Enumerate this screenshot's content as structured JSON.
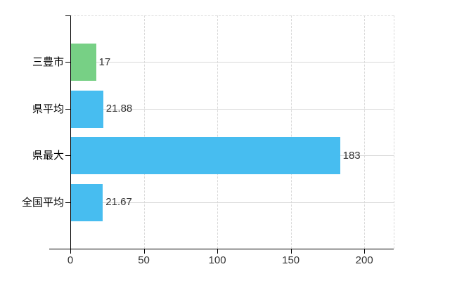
{
  "chart_data": {
    "type": "bar",
    "orientation": "horizontal",
    "title": "",
    "xlabel": "",
    "ylabel": "",
    "categories": [
      "三豊市",
      "県平均",
      "県最大",
      "全国平均"
    ],
    "values": [
      17,
      21.88,
      183,
      21.67
    ],
    "value_labels": [
      "17",
      "21.88",
      "183",
      "21.67"
    ],
    "bar_colors": [
      "#77d085",
      "#47bdf0",
      "#47bdf0",
      "#47bdf0"
    ],
    "xlim": [
      0,
      220
    ],
    "x_ticks": [
      0,
      50,
      100,
      150,
      200
    ],
    "x_tick_labels": [
      "0",
      "50",
      "100",
      "150",
      "200"
    ],
    "grid": true,
    "legend": "none"
  },
  "style": {
    "highlight_color": "#77d085",
    "series_color": "#47bdf0",
    "gridline_color": "#d9d9d9",
    "axis_color": "#000000",
    "background_color": "#ffffff"
  }
}
